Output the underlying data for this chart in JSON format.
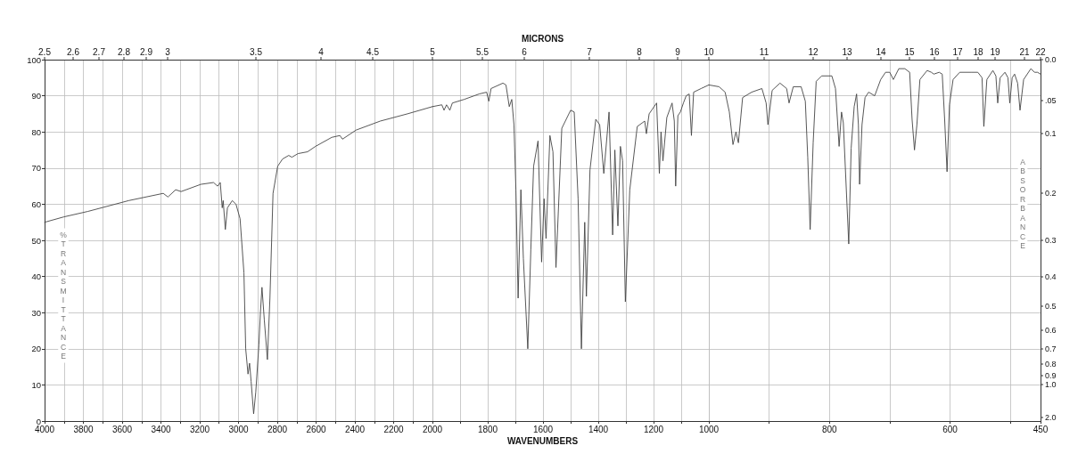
{
  "chart_data": [
    {
      "type": "line",
      "ylabel": "%TRANSMITTANCE",
      "xlim": [
        4000,
        2000
      ],
      "ylim": [
        0,
        100
      ],
      "xticks": [
        4000,
        {
          "value": 3900,
          "label": null
        },
        3800,
        {
          "value": 3700,
          "label": null
        },
        3600,
        {
          "value": 3500,
          "label": null
        },
        3400,
        {
          "value": 3300,
          "label": null
        },
        3200,
        {
          "value": 3100,
          "label": null
        },
        3000,
        {
          "value": 2900,
          "label": null
        },
        2800,
        {
          "value": 2700,
          "label": null
        },
        2600,
        {
          "value": 2500,
          "label": null
        },
        2400,
        {
          "value": 2300,
          "label": null
        },
        2200,
        {
          "value": 2100,
          "label": null
        },
        2000
      ],
      "yticks": [
        0,
        10,
        20,
        30,
        40,
        50,
        60,
        70,
        80,
        90,
        100
      ],
      "grid": true,
      "marker": "none",
      "annotations": [
        "2.5",
        "2.6",
        "2.7",
        "2.8",
        "2.9",
        "3",
        "3.5",
        "4",
        "4.5"
      ],
      "series": [
        {
          "color": "#444444",
          "x": [
            4000,
            3900,
            3777,
            3566,
            3388,
            3364,
            3324,
            3296,
            3194,
            3129,
            3108,
            3094,
            3084,
            3079,
            3068,
            3057,
            3032,
            3013,
            2992,
            2972,
            2963,
            2951,
            2943,
            2935,
            2922,
            2911,
            2895,
            2887,
            2879,
            2867,
            2851,
            2838,
            2822,
            2798,
            2773,
            2741,
            2725,
            2693,
            2644,
            2603,
            2519,
            2477,
            2464,
            2394,
            2269,
            2129,
            2032,
            2000
          ],
          "values": [
            55,
            56.5,
            58,
            61,
            63,
            62,
            64,
            63.5,
            65.5,
            66,
            65,
            66,
            59,
            61,
            53,
            59,
            61,
            60,
            56,
            41,
            20,
            13,
            16,
            11,
            2,
            8,
            21,
            30,
            37,
            28,
            17,
            34,
            63,
            70.5,
            72.5,
            73.5,
            73,
            74,
            74.5,
            76,
            78.5,
            79,
            78,
            80.5,
            83,
            85,
            86.5,
            87
          ]
        }
      ]
    },
    {
      "type": "line",
      "xlabel": "WAVENUMBERS",
      "x2label": "MICRONS",
      "xlim": [
        2000,
        1000
      ],
      "ylim": [
        0,
        100
      ],
      "xticks": [
        {
          "value": 2000,
          "label": null
        },
        {
          "value": 1900,
          "label": null
        },
        1800,
        {
          "value": 1700,
          "label": null
        },
        1600,
        {
          "value": 1500,
          "label": null
        },
        1400,
        {
          "value": 1300,
          "label": null
        },
        1200,
        {
          "value": 1100,
          "label": null
        },
        1000
      ],
      "yticks": [
        0,
        10,
        20,
        30,
        40,
        50,
        60,
        70,
        80,
        90,
        100
      ],
      "tick_labels": "x",
      "grid": true,
      "marker": "none",
      "annotations": [
        "5",
        "5.5",
        "6",
        "7",
        "8",
        "9",
        "10"
      ],
      "series": [
        {
          "color": "#444444",
          "x": [
            2000,
            1966,
            1958,
            1949,
            1937,
            1928,
            1885,
            1831,
            1804,
            1796,
            1788,
            1745,
            1734,
            1722,
            1713,
            1705,
            1698,
            1690,
            1680,
            1671,
            1655,
            1644,
            1634,
            1618,
            1605,
            1596,
            1589,
            1575,
            1564,
            1553,
            1532,
            1500,
            1487,
            1473,
            1461,
            1449,
            1443,
            1430,
            1409,
            1395,
            1380,
            1361,
            1348,
            1340,
            1329,
            1320,
            1312,
            1302,
            1286,
            1259,
            1232,
            1226,
            1216,
            1189,
            1179,
            1173,
            1166,
            1152,
            1133,
            1125,
            1120,
            1112,
            1103,
            1092,
            1082,
            1071,
            1063,
            1055,
            1028,
            1000
          ],
          "values": [
            87,
            87.5,
            86,
            87.5,
            86,
            88,
            89,
            90.5,
            91,
            88.5,
            92,
            93.5,
            93,
            87,
            89,
            82,
            64,
            34,
            64,
            45,
            20,
            47.5,
            70.5,
            77.5,
            44,
            61.5,
            50.5,
            79,
            74.5,
            42.5,
            81,
            86,
            85.5,
            61.5,
            20,
            55,
            34.5,
            69.5,
            83.5,
            82,
            68.5,
            85.5,
            51.5,
            75,
            54,
            76,
            72,
            33,
            64,
            81.5,
            83,
            79.5,
            85,
            88,
            68.5,
            80,
            72,
            84,
            88,
            83,
            65,
            84.5,
            85.5,
            88,
            90,
            90.5,
            79,
            91,
            92,
            93
          ]
        }
      ]
    },
    {
      "type": "line",
      "y2label": "ABSORBANCE",
      "xlim": [
        1000,
        450
      ],
      "ylim": [
        0,
        100
      ],
      "xticks": [
        {
          "value": 1000,
          "label": null
        },
        {
          "value": 900,
          "label": null
        },
        800,
        {
          "value": 700,
          "label": null
        },
        600,
        {
          "value": 500,
          "label": null
        },
        450
      ],
      "yticks": [
        0,
        10,
        20,
        30,
        40,
        50,
        60,
        70,
        80,
        90,
        100
      ],
      "tick_labels": "x",
      "grid": true,
      "marker": "none",
      "annotations": [
        "11",
        "12",
        "13",
        "14",
        "15",
        "16",
        "17",
        "18",
        "19",
        "21",
        "22",
        "0.0",
        ".05",
        "0.1",
        "0.2",
        "0.3",
        "0.4",
        "0.5",
        "0.6",
        "0.7",
        "0.8",
        "0.9",
        "1.0",
        "2.0"
      ],
      "series": [
        {
          "color": "#444444",
          "x": [
            1000,
            983,
            973,
            966,
            960,
            955,
            951,
            944,
            929,
            912,
            905,
            902,
            895,
            882,
            871,
            867,
            860,
            847,
            840,
            836,
            832,
            827,
            822,
            813,
            796,
            790,
            784,
            780,
            777,
            768,
            764,
            759,
            755,
            752,
            750,
            746,
            741,
            735,
            725,
            715,
            707,
            700,
            694,
            685,
            675,
            667,
            663,
            659,
            655,
            650,
            638,
            631,
            627,
            618,
            613,
            609,
            605,
            601,
            595,
            584,
            564,
            554,
            547,
            544,
            539,
            529,
            524,
            521,
            517,
            509,
            504,
            501,
            497,
            493,
            488,
            484,
            478,
            466,
            460,
            455,
            450
          ],
          "values": [
            93,
            92.5,
            91,
            85.5,
            76.5,
            80,
            77,
            89.5,
            91,
            92,
            88,
            82,
            91.5,
            93.5,
            92,
            88,
            92.5,
            92.5,
            88.5,
            73,
            53,
            77,
            94,
            95.5,
            95.5,
            92,
            76,
            85.5,
            82.5,
            49,
            75.5,
            87,
            90.5,
            82,
            65.5,
            82,
            89.5,
            91,
            90,
            94.5,
            96.5,
            96.5,
            94.5,
            97.5,
            97.5,
            96.5,
            83.5,
            75,
            82,
            94.5,
            97,
            96.5,
            96,
            96.5,
            96,
            83.5,
            69,
            87.5,
            94.5,
            96.5,
            96.5,
            96.5,
            95,
            81.5,
            94.5,
            97,
            95.5,
            88,
            95,
            96.5,
            95,
            88,
            95,
            96,
            93.5,
            86,
            94.5,
            97.5,
            96.5,
            96.5,
            96
          ]
        }
      ]
    }
  ]
}
